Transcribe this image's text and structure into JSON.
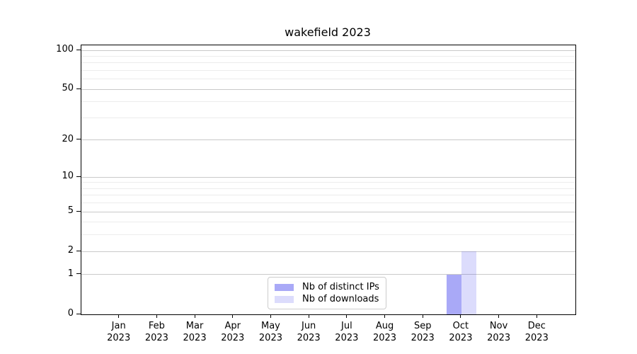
{
  "figure": {
    "background": "#ffffff",
    "spine_color": "#000000",
    "grid_major_color": "#c9c9c9",
    "grid_minor_color": "#ececec",
    "legend_border_color": "#cccccc",
    "text_color": "#000000"
  },
  "chart_data": {
    "type": "bar",
    "title": "wakefield 2023",
    "scale": "log1p",
    "grid": "horizontal-major-and-minor",
    "legend_position": "bottom-center",
    "categories": [
      {
        "month": "Jan",
        "year": "2023"
      },
      {
        "month": "Feb",
        "year": "2023"
      },
      {
        "month": "Mar",
        "year": "2023"
      },
      {
        "month": "Apr",
        "year": "2023"
      },
      {
        "month": "May",
        "year": "2023"
      },
      {
        "month": "Jun",
        "year": "2023"
      },
      {
        "month": "Jul",
        "year": "2023"
      },
      {
        "month": "Aug",
        "year": "2023"
      },
      {
        "month": "Sep",
        "year": "2023"
      },
      {
        "month": "Oct",
        "year": "2023"
      },
      {
        "month": "Nov",
        "year": "2023"
      },
      {
        "month": "Dec",
        "year": "2023"
      }
    ],
    "series": [
      {
        "name": "Nb of distinct IPs",
        "color": "rgba(68,68,238,0.46)",
        "color_hex_on_white": "#a9a9f7",
        "values": [
          0,
          0,
          0,
          0,
          0,
          0,
          0,
          0,
          0,
          1,
          0,
          0
        ]
      },
      {
        "name": "Nb of downloads",
        "color": "rgba(68,68,238,0.19)",
        "color_hex_on_white": "#dcdcf8",
        "values": [
          0,
          0,
          0,
          0,
          0,
          0,
          0,
          0,
          0,
          2,
          0,
          0
        ]
      }
    ],
    "y_axis": {
      "ticks": [
        0,
        1,
        2,
        5,
        10,
        20,
        50,
        100
      ],
      "minor_gridlines": [
        3,
        4,
        6,
        7,
        8,
        9,
        30,
        40,
        60,
        70,
        80,
        90
      ],
      "max_tick": 100,
      "ylim": [
        0,
        110
      ]
    }
  }
}
